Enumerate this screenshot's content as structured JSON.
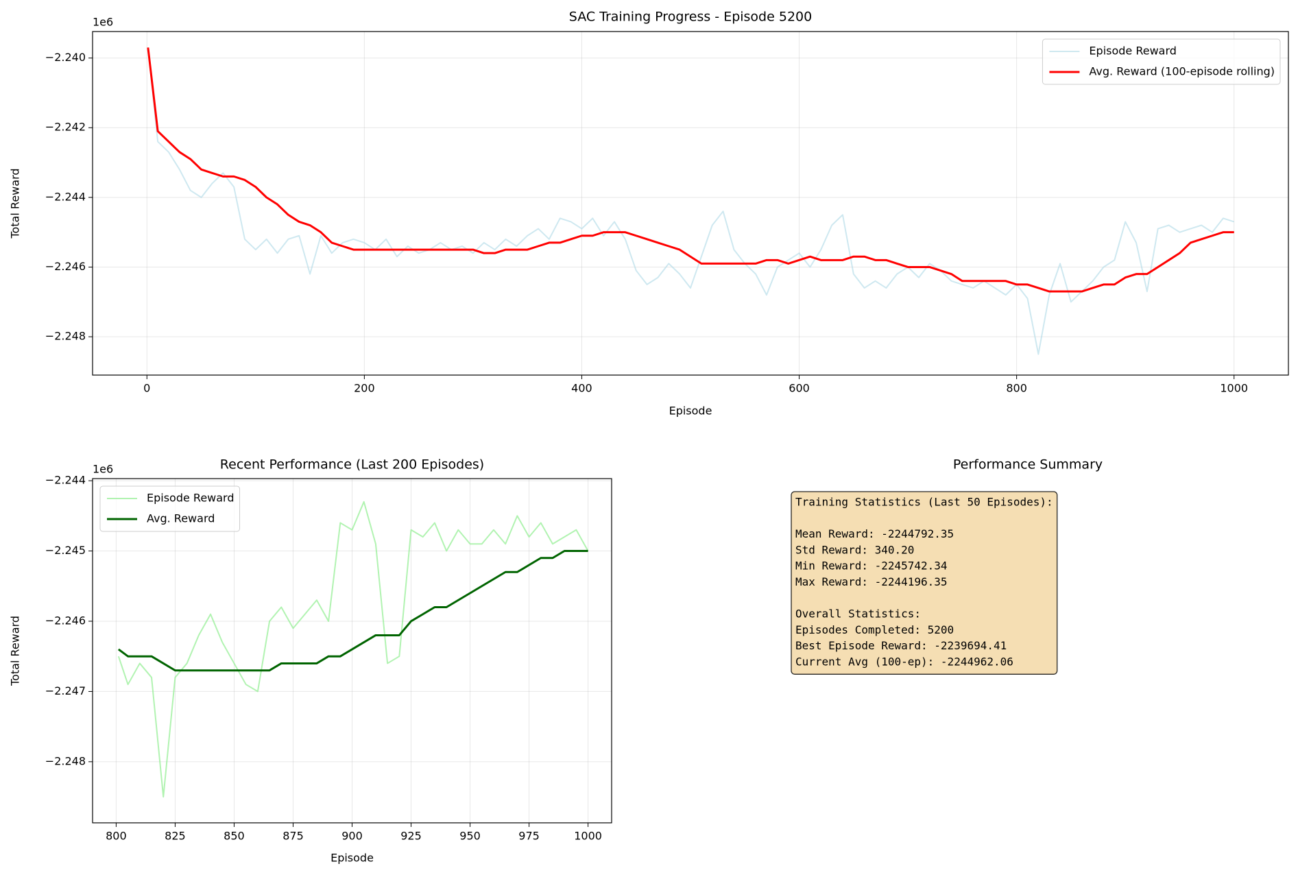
{
  "chart_data": [
    {
      "type": "line",
      "title": "SAC Training Progress - Episode 5200",
      "xlabel": "Episode",
      "ylabel": "Total Reward",
      "y_offset_label": "1e6",
      "grid": true,
      "legend": "upper right",
      "xlim": [
        -50,
        1050
      ],
      "xticks": [
        0,
        200,
        400,
        600,
        800,
        1000
      ],
      "ylim": [
        -2.2491,
        -2.23924
      ],
      "yticks": [
        {
          "value": -2.24,
          "label": "−2.240"
        },
        {
          "value": -2.242,
          "label": "−2.242"
        },
        {
          "value": -2.244,
          "label": "−2.244"
        },
        {
          "value": -2.246,
          "label": "−2.246"
        },
        {
          "value": -2.248,
          "label": "−2.248"
        }
      ],
      "x": [
        1,
        10,
        20,
        30,
        40,
        50,
        60,
        70,
        80,
        90,
        100,
        110,
        120,
        130,
        140,
        150,
        160,
        170,
        180,
        190,
        200,
        210,
        220,
        230,
        240,
        250,
        260,
        270,
        280,
        290,
        300,
        310,
        320,
        330,
        340,
        350,
        360,
        370,
        380,
        390,
        400,
        410,
        420,
        430,
        440,
        450,
        460,
        470,
        480,
        490,
        500,
        510,
        520,
        530,
        540,
        550,
        560,
        570,
        580,
        590,
        600,
        610,
        620,
        630,
        640,
        650,
        660,
        670,
        680,
        690,
        700,
        710,
        720,
        730,
        740,
        750,
        760,
        770,
        780,
        790,
        800,
        810,
        820,
        830,
        840,
        850,
        860,
        870,
        880,
        890,
        900,
        910,
        920,
        930,
        940,
        950,
        960,
        970,
        980,
        990,
        1000
      ],
      "series": [
        {
          "name": "Episode Reward",
          "color": "#add8e6",
          "opacity": 0.6,
          "width": 2,
          "values": [
            -2.2397,
            -2.2424,
            -2.2427,
            -2.2432,
            -2.2438,
            -2.244,
            -2.2436,
            -2.2433,
            -2.2437,
            -2.2452,
            -2.2455,
            -2.2452,
            -2.2456,
            -2.2452,
            -2.2451,
            -2.2462,
            -2.2451,
            -2.2456,
            -2.2453,
            -2.2452,
            -2.2453,
            -2.2455,
            -2.2452,
            -2.2457,
            -2.2454,
            -2.2456,
            -2.2455,
            -2.2453,
            -2.2455,
            -2.2454,
            -2.2456,
            -2.2453,
            -2.2455,
            -2.2452,
            -2.2454,
            -2.2451,
            -2.2449,
            -2.2452,
            -2.2446,
            -2.2447,
            -2.2449,
            -2.2446,
            -2.2451,
            -2.2447,
            -2.2452,
            -2.2461,
            -2.2465,
            -2.2463,
            -2.2459,
            -2.2462,
            -2.2466,
            -2.2457,
            -2.2448,
            -2.2444,
            -2.2455,
            -2.2459,
            -2.2462,
            -2.2468,
            -2.246,
            -2.2458,
            -2.2456,
            -2.246,
            -2.2455,
            -2.2448,
            -2.2445,
            -2.2462,
            -2.2466,
            -2.2464,
            -2.2466,
            -2.2462,
            -2.246,
            -2.2463,
            -2.2459,
            -2.2461,
            -2.2464,
            -2.2465,
            -2.2466,
            -2.2464,
            -2.2466,
            -2.2468,
            -2.2465,
            -2.2469,
            -2.2485,
            -2.2468,
            -2.2459,
            -2.247,
            -2.2467,
            -2.2464,
            -2.246,
            -2.2458,
            -2.2447,
            -2.2453,
            -2.2467,
            -2.2449,
            -2.2448,
            -2.245,
            -2.2449,
            -2.2448,
            -2.245,
            -2.2446,
            -2.2447
          ]
        },
        {
          "name": "Avg. Reward (100-episode rolling)",
          "color": "#ff0000",
          "opacity": 1,
          "width": 3,
          "values": [
            -2.2397,
            -2.2421,
            -2.2424,
            -2.2427,
            -2.2429,
            -2.2432,
            -2.2433,
            -2.2434,
            -2.2434,
            -2.2435,
            -2.2437,
            -2.244,
            -2.2442,
            -2.2445,
            -2.2447,
            -2.2448,
            -2.245,
            -2.2453,
            -2.2454,
            -2.2455,
            -2.2455,
            -2.2455,
            -2.2455,
            -2.2455,
            -2.2455,
            -2.2455,
            -2.2455,
            -2.2455,
            -2.2455,
            -2.2455,
            -2.2455,
            -2.2456,
            -2.2456,
            -2.2455,
            -2.2455,
            -2.2455,
            -2.2454,
            -2.2453,
            -2.2453,
            -2.2452,
            -2.2451,
            -2.2451,
            -2.245,
            -2.245,
            -2.245,
            -2.2451,
            -2.2452,
            -2.2453,
            -2.2454,
            -2.2455,
            -2.2457,
            -2.2459,
            -2.2459,
            -2.2459,
            -2.2459,
            -2.2459,
            -2.2459,
            -2.2458,
            -2.2458,
            -2.2459,
            -2.2458,
            -2.2457,
            -2.2458,
            -2.2458,
            -2.2458,
            -2.2457,
            -2.2457,
            -2.2458,
            -2.2458,
            -2.2459,
            -2.246,
            -2.246,
            -2.246,
            -2.2461,
            -2.2462,
            -2.2464,
            -2.2464,
            -2.2464,
            -2.2464,
            -2.2464,
            -2.2465,
            -2.2465,
            -2.2466,
            -2.2467,
            -2.2467,
            -2.2467,
            -2.2467,
            -2.2466,
            -2.2465,
            -2.2465,
            -2.2463,
            -2.2462,
            -2.2462,
            -2.246,
            -2.2458,
            -2.2456,
            -2.2453,
            -2.2452,
            -2.2451,
            -2.245,
            -2.245
          ]
        }
      ]
    },
    {
      "type": "line",
      "title": "Recent Performance (Last 200 Episodes)",
      "xlabel": "Episode",
      "ylabel": "Total Reward",
      "y_offset_label": "1e6",
      "grid": true,
      "legend": "upper left",
      "xlim": [
        790,
        1010
      ],
      "xticks": [
        800,
        825,
        850,
        875,
        900,
        925,
        950,
        975,
        1000
      ],
      "ylim": [
        -2.24887,
        -2.24397
      ],
      "yticks": [
        {
          "value": -2.244,
          "label": "−2.244"
        },
        {
          "value": -2.245,
          "label": "−2.245"
        },
        {
          "value": -2.246,
          "label": "−2.246"
        },
        {
          "value": -2.247,
          "label": "−2.247"
        },
        {
          "value": -2.248,
          "label": "−2.248"
        }
      ],
      "x": [
        801,
        805,
        810,
        815,
        820,
        825,
        830,
        835,
        840,
        845,
        850,
        855,
        860,
        865,
        870,
        875,
        880,
        885,
        890,
        895,
        900,
        905,
        910,
        915,
        920,
        925,
        930,
        935,
        940,
        945,
        950,
        955,
        960,
        965,
        970,
        975,
        980,
        985,
        990,
        995,
        1000
      ],
      "series": [
        {
          "name": "Episode Reward",
          "color": "#90ee90",
          "opacity": 0.7,
          "width": 2,
          "values": [
            -2.2465,
            -2.2469,
            -2.2466,
            -2.2468,
            -2.2485,
            -2.2468,
            -2.2466,
            -2.2462,
            -2.2459,
            -2.2463,
            -2.2466,
            -2.2469,
            -2.247,
            -2.246,
            -2.2458,
            -2.2461,
            -2.2459,
            -2.2457,
            -2.246,
            -2.2446,
            -2.2447,
            -2.2443,
            -2.2449,
            -2.2466,
            -2.2465,
            -2.2447,
            -2.2448,
            -2.2446,
            -2.245,
            -2.2447,
            -2.2449,
            -2.2449,
            -2.2447,
            -2.2449,
            -2.2445,
            -2.2448,
            -2.2446,
            -2.2449,
            -2.2448,
            -2.2447,
            -2.245
          ]
        },
        {
          "name": "Avg. Reward",
          "color": "#006400",
          "opacity": 1,
          "width": 3,
          "values": [
            -2.2464,
            -2.2465,
            -2.2465,
            -2.2465,
            -2.2466,
            -2.2467,
            -2.2467,
            -2.2467,
            -2.2467,
            -2.2467,
            -2.2467,
            -2.2467,
            -2.2467,
            -2.2467,
            -2.2466,
            -2.2466,
            -2.2466,
            -2.2466,
            -2.2465,
            -2.2465,
            -2.2464,
            -2.2463,
            -2.2462,
            -2.2462,
            -2.2462,
            -2.246,
            -2.2459,
            -2.2458,
            -2.2458,
            -2.2457,
            -2.2456,
            -2.2455,
            -2.2454,
            -2.2453,
            -2.2453,
            -2.2452,
            -2.2451,
            -2.2451,
            -2.245,
            -2.245,
            -2.245
          ]
        }
      ]
    }
  ],
  "summary": {
    "title": "Performance Summary",
    "box_color": "#f5deb3",
    "blocks": [
      [
        "Training Statistics (Last 50 Episodes):"
      ],
      [
        "Mean Reward: -2244792.35",
        "Std Reward: 340.20",
        "Min Reward: -2245742.34",
        "Max Reward: -2244196.35"
      ],
      [
        "Overall Statistics:",
        "Episodes Completed: 5200",
        "Best Episode Reward: -2239694.41",
        "Current Avg (100-ep): -2244962.06"
      ]
    ]
  }
}
